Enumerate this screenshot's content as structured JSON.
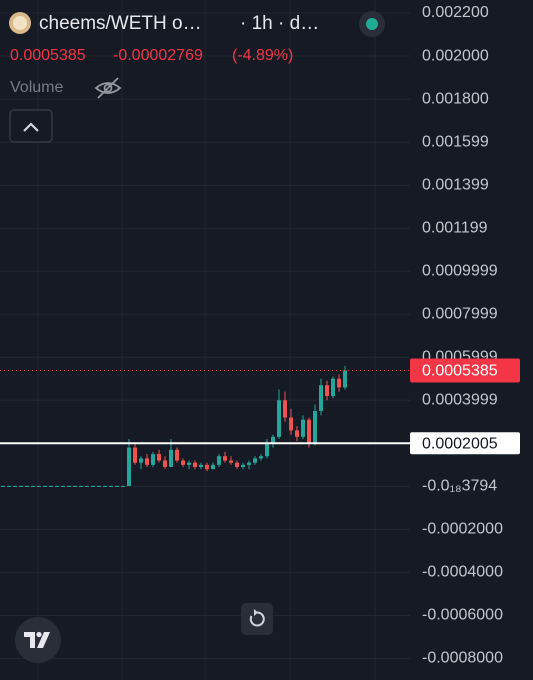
{
  "chart_data": {
    "type": "candlestick",
    "title": "cheems/WETH o…",
    "subtitle": "· 1h · d…",
    "last_price": 0.0005385,
    "change": -2.769e-05,
    "change_percent": {
      "value": -4.89,
      "label": "(-4.89%)"
    },
    "volume_label": "Volume",
    "hline": 0.0002005,
    "up_color": "#26a69a",
    "down_color": "#ef5350",
    "price_line_color": "#f23645",
    "hline_color": "#ffffff",
    "grid": true,
    "ylim": [
      -0.0009,
      0.0022
    ],
    "yticks": [
      {
        "value": 0.0022,
        "label": "0.002200"
      },
      {
        "value": 0.002,
        "label": "0.002000"
      },
      {
        "value": 0.0018,
        "label": "0.001800"
      },
      0.001599,
      0.001399,
      0.001199,
      0.0009999,
      0.0007999,
      0.0005999,
      0.0003999,
      {
        "value": -3.794e-19,
        "label": "-0.0₁₈3794"
      },
      {
        "value": -0.0002,
        "label": "-0.0002000"
      },
      {
        "value": -0.0004,
        "label": "-0.0004000"
      },
      {
        "value": -0.0006,
        "label": "-0.0006000"
      },
      {
        "value": -0.0008,
        "label": "-0.0008000"
      }
    ],
    "open": [
      2e-06,
      2e-06,
      2e-06,
      2e-06,
      2e-06,
      2e-06,
      2e-06,
      2e-06,
      2e-06,
      2e-06,
      2e-06,
      2e-06,
      2e-06,
      2e-06,
      2e-06,
      2e-06,
      2e-06,
      2e-06,
      2e-06,
      2e-06,
      2e-06,
      2e-06,
      0.00018,
      0.00011,
      0.00013,
      0.0001,
      0.00015,
      0.00012,
      9e-05,
      0.00017,
      0.00012,
      0.0001,
      0.00011,
      9e-05,
      0.0001,
      8e-05,
      0.0001,
      0.00014,
      0.00012,
      0.00011,
      9e-05,
      0.0001,
      0.00011,
      0.00013,
      0.00014,
      0.0002,
      0.00023,
      0.0004,
      0.00032,
      0.00026,
      0.00023,
      0.00031,
      0.0002,
      0.00035,
      0.00047,
      0.00042,
      0.0005,
      0.00046
    ],
    "high": [
      3e-06,
      3e-06,
      3e-06,
      3e-06,
      3e-06,
      3e-06,
      3e-06,
      3e-06,
      3e-06,
      3e-06,
      3e-06,
      3e-06,
      3e-06,
      3e-06,
      3e-06,
      3e-06,
      3e-06,
      3e-06,
      3e-06,
      3e-06,
      3e-06,
      0.00022,
      0.0002,
      0.00014,
      0.00015,
      0.00016,
      0.00017,
      0.00014,
      0.00022,
      0.00018,
      0.00013,
      0.00012,
      0.00012,
      0.00011,
      0.00011,
      0.00011,
      0.00015,
      0.00016,
      0.00014,
      0.00012,
      0.00011,
      0.00012,
      0.00014,
      0.00015,
      0.00022,
      0.00024,
      0.00045,
      0.00044,
      0.00036,
      0.00028,
      0.00033,
      0.00032,
      0.00038,
      0.0005,
      0.00049,
      0.00051,
      0.00052,
      0.00056
    ],
    "low": [
      1e-06,
      1e-06,
      1e-06,
      1e-06,
      1e-06,
      1e-06,
      1e-06,
      1e-06,
      1e-06,
      1e-06,
      1e-06,
      1e-06,
      1e-06,
      1e-06,
      1e-06,
      1e-06,
      1e-06,
      1e-06,
      1e-06,
      1e-06,
      1e-06,
      2e-06,
      0.0001,
      8e-05,
      9e-05,
      9e-05,
      0.00011,
      8e-05,
      9e-05,
      0.00011,
      9e-05,
      8e-05,
      8e-05,
      8e-05,
      7e-05,
      8e-05,
      9e-05,
      0.00011,
      0.0001,
      8e-05,
      8e-05,
      8e-05,
      0.0001,
      0.00012,
      0.00013,
      0.00018,
      0.00022,
      0.0003,
      0.00024,
      0.00021,
      0.00022,
      0.00018,
      0.00019,
      0.00033,
      0.0004,
      0.00041,
      0.00044,
      0.00045
    ],
    "close": [
      2e-06,
      2e-06,
      2e-06,
      2e-06,
      2e-06,
      2e-06,
      2e-06,
      2e-06,
      2e-06,
      2e-06,
      2e-06,
      2e-06,
      2e-06,
      2e-06,
      2e-06,
      2e-06,
      2e-06,
      2e-06,
      2e-06,
      2e-06,
      2e-06,
      0.00018,
      0.00011,
      0.00013,
      0.0001,
      0.00015,
      0.00012,
      9e-05,
      0.00017,
      0.00012,
      0.0001,
      0.00011,
      9e-05,
      0.0001,
      8e-05,
      0.0001,
      0.00014,
      0.00012,
      0.00011,
      9e-05,
      0.0001,
      0.00011,
      0.00013,
      0.00014,
      0.0002,
      0.00023,
      0.0004,
      0.00032,
      0.00026,
      0.00023,
      0.00031,
      0.0002,
      0.00035,
      0.00047,
      0.00042,
      0.0005,
      0.00046,
      0.0005385
    ]
  }
}
